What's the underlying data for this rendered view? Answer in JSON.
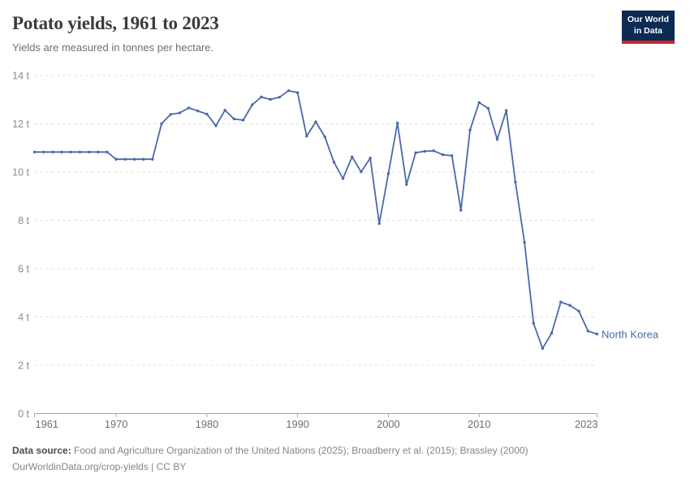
{
  "header": {
    "title": "Potato yields, 1961 to 2023",
    "subtitle": "Yields are measured in tonnes per hectare."
  },
  "logo": {
    "line1": "Our World",
    "line2": "in Data",
    "bg_color": "#0d2a52",
    "accent_color": "#c8262c"
  },
  "chart_data": {
    "type": "line",
    "title": "Potato yields, 1961 to 2023",
    "subtitle": "Yields are measured in tonnes per hectare.",
    "unit": "tonnes per hectare",
    "grid": "dashed-horizontal",
    "legend": "end-of-line-label",
    "ylim": [
      0,
      14
    ],
    "xlim": [
      1961,
      2023
    ],
    "yticks": [
      {
        "value": 0,
        "label": "0 t"
      },
      {
        "value": 2,
        "label": "2 t"
      },
      {
        "value": 4,
        "label": "4 t"
      },
      {
        "value": 6,
        "label": "6 t"
      },
      {
        "value": 8,
        "label": "8 t"
      },
      {
        "value": 10,
        "label": "10 t"
      },
      {
        "value": 12,
        "label": "12 t"
      },
      {
        "value": 14,
        "label": "14 t"
      }
    ],
    "xticks": [
      {
        "value": 1961,
        "label": "1961"
      },
      {
        "value": 1970,
        "label": "1970"
      },
      {
        "value": 1980,
        "label": "1980"
      },
      {
        "value": 1990,
        "label": "1990"
      },
      {
        "value": 2000,
        "label": "2000"
      },
      {
        "value": 2010,
        "label": "2010"
      },
      {
        "value": 2023,
        "label": "2023"
      }
    ],
    "x": [
      1961,
      1962,
      1963,
      1964,
      1965,
      1966,
      1967,
      1968,
      1969,
      1970,
      1971,
      1972,
      1973,
      1974,
      1975,
      1976,
      1977,
      1978,
      1979,
      1980,
      1981,
      1982,
      1983,
      1984,
      1985,
      1986,
      1987,
      1988,
      1989,
      1990,
      1991,
      1992,
      1993,
      1994,
      1995,
      1996,
      1997,
      1998,
      1999,
      2000,
      2001,
      2002,
      2003,
      2004,
      2005,
      2006,
      2007,
      2008,
      2009,
      2010,
      2011,
      2012,
      2013,
      2014,
      2015,
      2016,
      2017,
      2018,
      2019,
      2020,
      2021,
      2022,
      2023
    ],
    "series": [
      {
        "name": "North Korea",
        "color": "#4a69a8",
        "values": [
          10.83,
          10.83,
          10.83,
          10.83,
          10.83,
          10.83,
          10.83,
          10.83,
          10.83,
          10.53,
          10.53,
          10.53,
          10.53,
          10.53,
          12.0,
          12.39,
          12.45,
          12.66,
          12.53,
          12.4,
          11.92,
          12.56,
          12.2,
          12.15,
          12.79,
          13.11,
          13.01,
          13.1,
          13.37,
          13.29,
          11.49,
          12.08,
          11.46,
          10.41,
          9.73,
          10.63,
          10.01,
          10.58,
          7.87,
          9.93,
          12.03,
          9.49,
          10.8,
          10.86,
          10.88,
          10.72,
          10.68,
          8.42,
          11.74,
          12.88,
          12.64,
          11.35,
          12.55,
          9.59,
          7.09,
          3.73,
          2.7,
          3.33,
          4.62,
          4.48,
          4.24,
          3.42,
          3.29
        ]
      }
    ],
    "style": {
      "grid_color": "#dcdcdc",
      "axis_color": "#a6a6a6",
      "ytick_text_color": "#8c8c8c",
      "xtick_text_color": "#6e6e6e"
    }
  },
  "footer": {
    "datasource_label": "Data source:",
    "datasource_text": " Food and Agriculture Organization of the United Nations (2025); Broadberry et al. (2015); Brassley (2000)",
    "attribution": "OurWorldinData.org/crop-yields | CC BY"
  }
}
